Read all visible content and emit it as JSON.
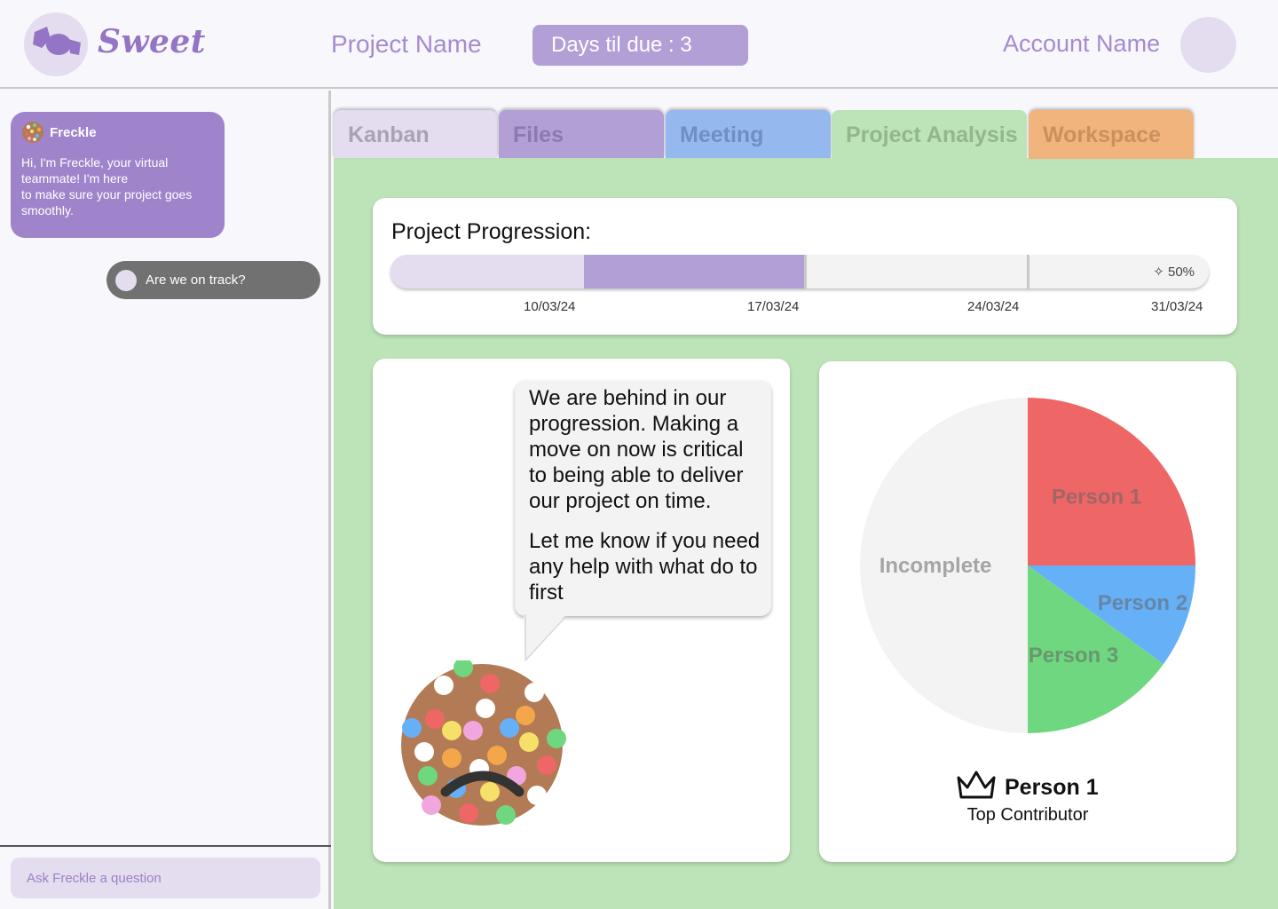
{
  "header": {
    "logo_text": "Sweet",
    "project_name": "Project Name",
    "days_due": "Days til due : 3",
    "account_name": "Account Name",
    "logo_icon": "candy-icon"
  },
  "sidebar": {
    "bot_name": "Freckle",
    "bot_message_lines": [
      "Hi, I'm Freckle, your virtual",
      "teammate! I'm here",
      "to make sure your project goes",
      "smoothly."
    ],
    "user_message": "Are we on track?",
    "ask_placeholder": "Ask Freckle a question"
  },
  "tabs": [
    {
      "label": "Kanban",
      "color": "#e4dcef"
    },
    {
      "label": "Files",
      "color": "#b29fd6"
    },
    {
      "label": "Meeting",
      "color": "#95b8ef"
    },
    {
      "label": "Project Analysis",
      "color": "#bde3b8",
      "active": true
    },
    {
      "label": "Workspace",
      "color": "#f1b47c"
    }
  ],
  "progress": {
    "title": "Project Progression:",
    "percent": 50,
    "percent_label": "✧ 50%",
    "dates": [
      "10/03/24",
      "17/03/24",
      "24/03/24",
      "31/03/24"
    ]
  },
  "freckle_message": {
    "paragraph_1": "We are behind in our progression. Making a move on now is critical to being able to deliver our project on time.",
    "paragraph_2": "Let me know if you need any help with what do to first",
    "mood": "sad"
  },
  "chart_data": {
    "type": "pie",
    "slices": [
      {
        "label": "Person 1",
        "value": 25,
        "color": "#ee6666"
      },
      {
        "label": "Person 2",
        "value": 10,
        "color": "#66b0f8"
      },
      {
        "label": "Person 3",
        "value": 15,
        "color": "#6fd77f"
      },
      {
        "label": "Incomplete",
        "value": 50,
        "color": "#f3f3f3"
      }
    ]
  },
  "contributor": {
    "name": "Person 1",
    "label": "Top Contributor"
  }
}
